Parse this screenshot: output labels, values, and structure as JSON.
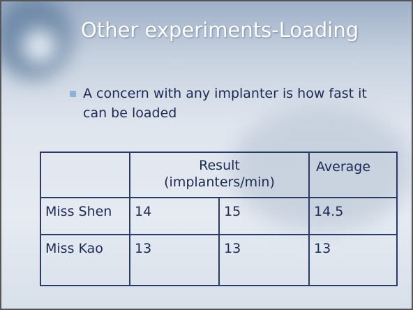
{
  "title": "Other experiments-Loading",
  "bullets": [
    "A concern with any implanter is how fast it can be loaded"
  ],
  "table": {
    "header": {
      "result": [
        "Result",
        "(implanters/min)"
      ],
      "average": "Average"
    },
    "rows": [
      [
        "Miss Shen",
        "14",
        "15",
        "14.5"
      ],
      [
        "Miss Kao",
        "13",
        "13",
        "13"
      ]
    ]
  }
}
